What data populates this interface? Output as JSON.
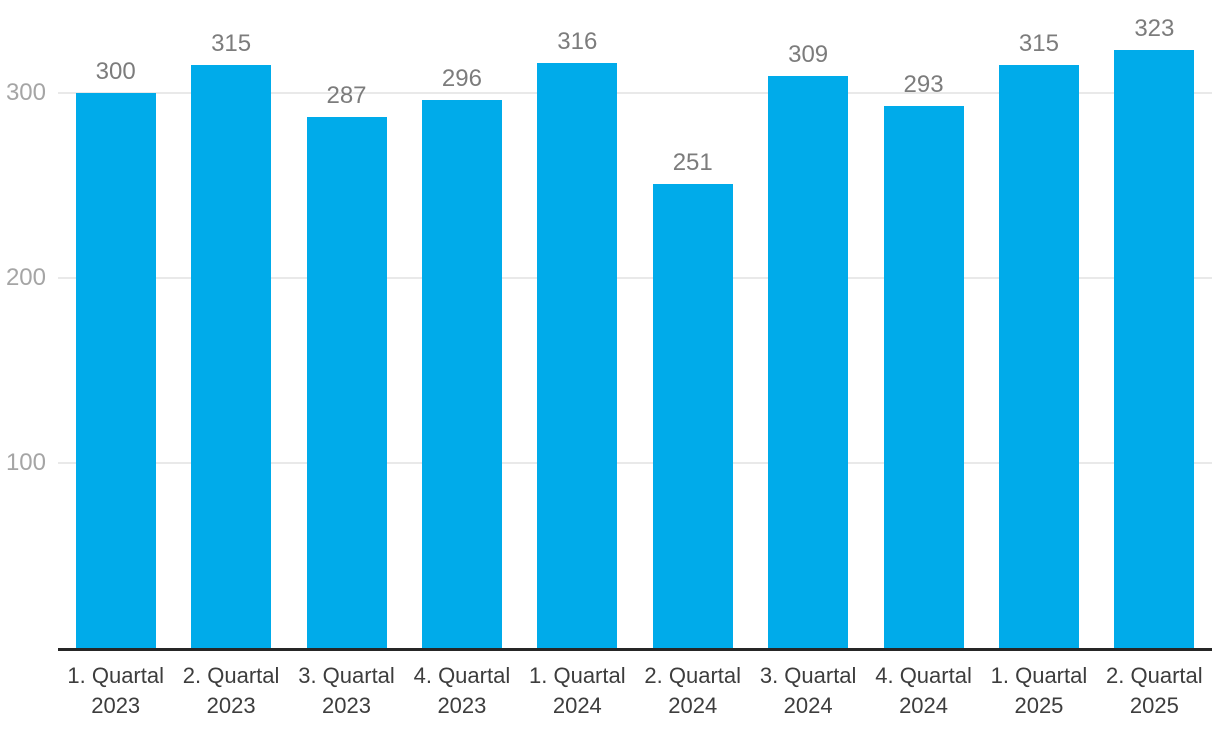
{
  "chart_data": {
    "type": "bar",
    "categories": [
      "1. Quartal\n2023",
      "2. Quartal\n2023",
      "3. Quartal\n2023",
      "4. Quartal\n2023",
      "1. Quartal\n2024",
      "2. Quartal\n2024",
      "3. Quartal\n2024",
      "4. Quartal\n2024",
      "1. Quartal\n2025",
      "2. Quartal\n2025"
    ],
    "values": [
      300,
      315,
      287,
      296,
      316,
      251,
      309,
      293,
      315,
      323
    ],
    "value_labels_shown": true,
    "y_ticks": [
      100,
      200,
      300
    ],
    "ylim": [
      0,
      350
    ],
    "xlabel": "",
    "ylabel": "",
    "grid": true,
    "legend_position": "none",
    "colors": {
      "bar": "#00abea",
      "gridline": "#e9e9e9",
      "axis_line": "#262626",
      "y_tick_label": "#a5a5a5",
      "value_label": "#7c7c7c",
      "x_tick_label": "#3d3d3d",
      "background": "#ffffff"
    }
  }
}
